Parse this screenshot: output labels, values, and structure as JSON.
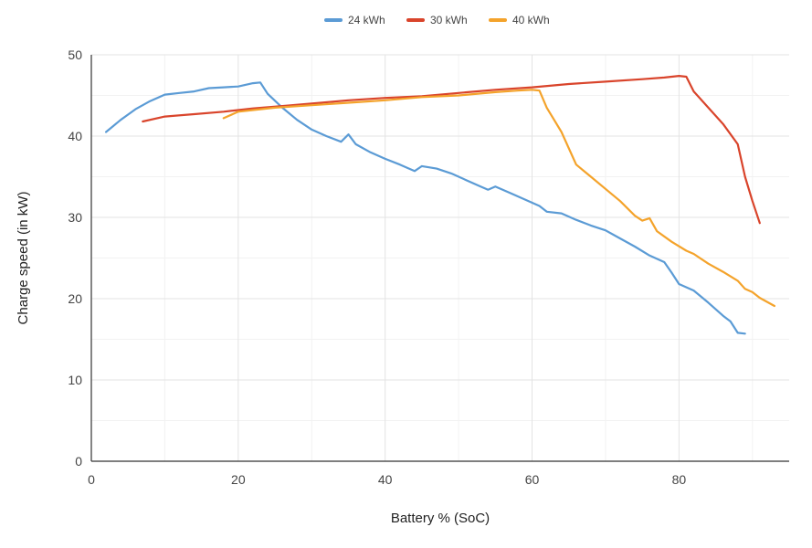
{
  "chart_data": {
    "type": "line",
    "title": "",
    "xlabel": "Battery % (SoC)",
    "ylabel": "Charge speed (in kW)",
    "xlim": [
      0,
      95
    ],
    "ylim": [
      0,
      50
    ],
    "x_ticks": [
      0,
      20,
      40,
      60,
      80
    ],
    "y_ticks": [
      0,
      10,
      20,
      30,
      40,
      50
    ],
    "grid": true,
    "legend_position": "top-center",
    "series": [
      {
        "name": "24 kWh",
        "color": "#5b9bd5",
        "points": [
          [
            2,
            40.5
          ],
          [
            4,
            42
          ],
          [
            6,
            43.3
          ],
          [
            8,
            44.3
          ],
          [
            10,
            45.1
          ],
          [
            12,
            45.3
          ],
          [
            14,
            45.5
          ],
          [
            16,
            45.9
          ],
          [
            18,
            46
          ],
          [
            20,
            46.1
          ],
          [
            22,
            46.5
          ],
          [
            23,
            46.6
          ],
          [
            24,
            45.2
          ],
          [
            26,
            43.5
          ],
          [
            28,
            42
          ],
          [
            30,
            40.8
          ],
          [
            32,
            40
          ],
          [
            34,
            39.3
          ],
          [
            35,
            40.2
          ],
          [
            36,
            39
          ],
          [
            38,
            38
          ],
          [
            40,
            37.2
          ],
          [
            42,
            36.5
          ],
          [
            43,
            36.1
          ],
          [
            44,
            35.7
          ],
          [
            45,
            36.3
          ],
          [
            47,
            36
          ],
          [
            49,
            35.4
          ],
          [
            51,
            34.6
          ],
          [
            53,
            33.8
          ],
          [
            54,
            33.4
          ],
          [
            55,
            33.8
          ],
          [
            57,
            33
          ],
          [
            59,
            32.2
          ],
          [
            61,
            31.4
          ],
          [
            62,
            30.7
          ],
          [
            64,
            30.5
          ],
          [
            66,
            29.7
          ],
          [
            68,
            29
          ],
          [
            70,
            28.4
          ],
          [
            72,
            27.4
          ],
          [
            74,
            26.4
          ],
          [
            76,
            25.3
          ],
          [
            78,
            24.5
          ],
          [
            79,
            23.2
          ],
          [
            80,
            21.8
          ],
          [
            82,
            21
          ],
          [
            84,
            19.5
          ],
          [
            86,
            17.9
          ],
          [
            87,
            17.2
          ],
          [
            88,
            15.8
          ],
          [
            89,
            15.7
          ]
        ]
      },
      {
        "name": "30 kWh",
        "color": "#d9442b",
        "points": [
          [
            7,
            41.8
          ],
          [
            10,
            42.4
          ],
          [
            14,
            42.7
          ],
          [
            18,
            43
          ],
          [
            22,
            43.4
          ],
          [
            26,
            43.7
          ],
          [
            30,
            44
          ],
          [
            35,
            44.4
          ],
          [
            40,
            44.7
          ],
          [
            45,
            44.9
          ],
          [
            50,
            45.3
          ],
          [
            55,
            45.7
          ],
          [
            60,
            46
          ],
          [
            65,
            46.4
          ],
          [
            70,
            46.7
          ],
          [
            75,
            47
          ],
          [
            78,
            47.2
          ],
          [
            80,
            47.4
          ],
          [
            81,
            47.3
          ],
          [
            82,
            45.5
          ],
          [
            84,
            43.5
          ],
          [
            86,
            41.5
          ],
          [
            88,
            39
          ],
          [
            89,
            35
          ],
          [
            90,
            32
          ],
          [
            91,
            29.3
          ]
        ]
      },
      {
        "name": "40 kWh",
        "color": "#f4a32b",
        "points": [
          [
            18,
            42.2
          ],
          [
            20,
            43
          ],
          [
            22,
            43.2
          ],
          [
            25,
            43.5
          ],
          [
            30,
            43.8
          ],
          [
            35,
            44.1
          ],
          [
            40,
            44.4
          ],
          [
            45,
            44.8
          ],
          [
            50,
            45
          ],
          [
            55,
            45.4
          ],
          [
            58,
            45.6
          ],
          [
            60,
            45.7
          ],
          [
            61,
            45.6
          ],
          [
            62,
            43.5
          ],
          [
            64,
            40.5
          ],
          [
            66,
            36.5
          ],
          [
            68,
            35
          ],
          [
            70,
            33.5
          ],
          [
            72,
            32
          ],
          [
            74,
            30.2
          ],
          [
            75,
            29.6
          ],
          [
            76,
            29.9
          ],
          [
            77,
            28.3
          ],
          [
            79,
            27
          ],
          [
            81,
            25.9
          ],
          [
            82,
            25.5
          ],
          [
            84,
            24.3
          ],
          [
            86,
            23.3
          ],
          [
            88,
            22.2
          ],
          [
            89,
            21.2
          ],
          [
            90,
            20.8
          ],
          [
            91,
            20.1
          ],
          [
            93,
            19.1
          ]
        ]
      }
    ]
  }
}
